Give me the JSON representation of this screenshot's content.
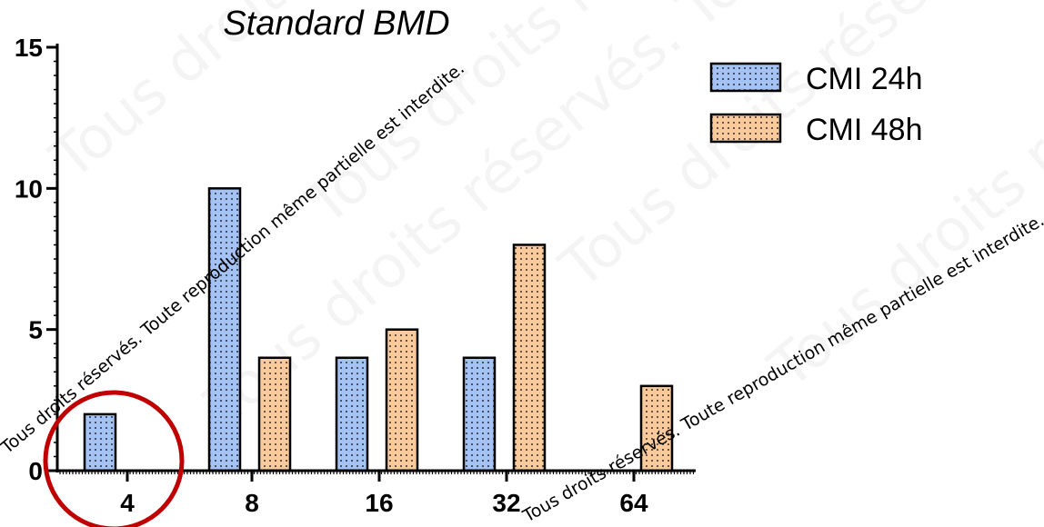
{
  "chart_data": {
    "type": "bar",
    "title": "Standard BMD",
    "categories": [
      "4",
      "8",
      "16",
      "32",
      "64"
    ],
    "series": [
      {
        "name": "CMI 24h",
        "values": [
          2,
          10,
          4,
          4,
          0
        ],
        "color": "#a4c2f4"
      },
      {
        "name": "CMI 48h",
        "values": [
          0,
          4,
          5,
          8,
          3
        ],
        "color": "#f9cb9c"
      }
    ],
    "ylim": [
      0,
      15
    ],
    "yticks": [
      "0",
      "5",
      "10",
      "15"
    ],
    "xlabel": "",
    "ylabel": "",
    "grid": false,
    "legend": "top-right",
    "annotation": {
      "shape": "circle",
      "target_category": "4",
      "color": "#c00000"
    }
  },
  "watermark": "Tous droits réservés. Toute reproduction même partielle est interdite."
}
